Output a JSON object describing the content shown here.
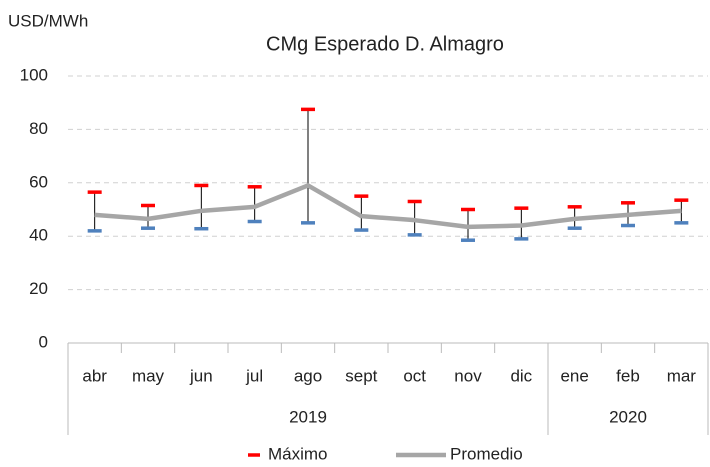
{
  "chart_data": {
    "type": "line",
    "title": "CMg Esperado D. Almagro",
    "y_label": "USD/MWh",
    "categories": [
      "abr",
      "may",
      "jun",
      "jul",
      "ago",
      "sept",
      "oct",
      "nov",
      "dic",
      "ene",
      "feb",
      "mar"
    ],
    "groups": [
      {
        "label": "2019",
        "span": 9
      },
      {
        "label": "2020",
        "span": 3
      }
    ],
    "series": [
      {
        "name": "Máximo",
        "color": "#ff0000",
        "marker": "dash",
        "values": [
          56.5,
          51.5,
          59,
          58.5,
          87.5,
          55,
          53,
          50,
          50.5,
          51,
          52.5,
          53.5
        ]
      },
      {
        "color": "#4f81bd",
        "marker": "dash",
        "values": [
          42,
          43,
          42.8,
          45.5,
          45,
          42.3,
          40.5,
          38.5,
          39,
          43,
          44,
          45
        ]
      },
      {
        "name": "Promedio",
        "color": "#a6a6a6",
        "marker": "line",
        "values": [
          48,
          46.5,
          49.5,
          51,
          59,
          47.5,
          46,
          43.5,
          44,
          46.5,
          48,
          49.5
        ]
      }
    ],
    "ylim": [
      0,
      100
    ],
    "yticks": [
      0,
      20,
      40,
      60,
      80,
      100
    ],
    "grid": true,
    "legend": "bottom"
  }
}
